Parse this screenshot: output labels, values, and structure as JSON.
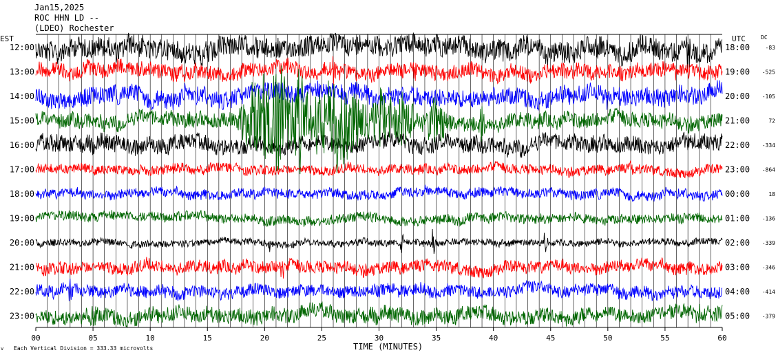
{
  "header": {
    "date": "Jan15,2025",
    "station": "ROC HHN LD --",
    "network": "(LDEO) Rochester"
  },
  "footer": {
    "scale_note": "Each Vertical Division = 333.33 microvolts",
    "corner_mark": "v"
  },
  "chart_data": {
    "type": "line",
    "title": "Jan15,2025 ROC HHN LD -- (LDEO) Rochester",
    "xlabel": "TIME (MINUTES)",
    "xlim": [
      0,
      60
    ],
    "x_ticks": [
      "00",
      "05",
      "10",
      "15",
      "20",
      "25",
      "30",
      "35",
      "40",
      "45",
      "50",
      "55",
      "60"
    ],
    "left_axis_label": "EST",
    "right_axis_label": "UTC",
    "dc_label": "DC",
    "grid": "vertical lines every minute",
    "colors": [
      "#000000",
      "#ff0000",
      "#0000ff",
      "#006600"
    ],
    "series": [
      {
        "est": "12:00",
        "utc": "18:00",
        "dc": "-83",
        "color": "#000000",
        "amplitude": 0.75,
        "spikes": [
          [
            2,
            1.2
          ],
          [
            15,
            1.1
          ],
          [
            57,
            1.6
          ]
        ]
      },
      {
        "est": "13:00",
        "utc": "19:00",
        "dc": "-525",
        "color": "#ff0000",
        "amplitude": 0.55,
        "spikes": [
          [
            26,
            1.4
          ],
          [
            33,
            1.0
          ]
        ]
      },
      {
        "est": "14:00",
        "utc": "20:00",
        "dc": "-105",
        "color": "#0000ff",
        "amplitude": 0.65,
        "spikes": [
          [
            27,
            1.0
          ],
          [
            50,
            0.9
          ]
        ]
      },
      {
        "est": "15:00",
        "utc": "21:00",
        "dc": "72",
        "color": "#006600",
        "amplitude": 0.55,
        "spikes": [
          [
            19,
            4.5
          ],
          [
            21,
            6.0
          ],
          [
            23,
            5.0
          ],
          [
            25,
            3.5
          ],
          [
            26.5,
            4.5
          ],
          [
            28,
            4.0
          ],
          [
            30,
            3.0
          ],
          [
            32,
            2.5
          ],
          [
            35,
            2.5
          ],
          [
            39,
            2.0
          ]
        ]
      },
      {
        "est": "16:00",
        "utc": "22:00",
        "dc": "-334",
        "color": "#000000",
        "amplitude": 0.6,
        "spikes": [
          [
            2,
            1.0
          ],
          [
            8,
            0.9
          ]
        ]
      },
      {
        "est": "17:00",
        "utc": "23:00",
        "dc": "-864",
        "color": "#ff0000",
        "amplitude": 0.35,
        "spikes": [
          [
            12,
            0.6
          ],
          [
            52,
            0.6
          ]
        ]
      },
      {
        "est": "18:00",
        "utc": "00:00",
        "dc": "18",
        "color": "#0000ff",
        "amplitude": 0.35,
        "spikes": []
      },
      {
        "est": "19:00",
        "utc": "01:00",
        "dc": "-136",
        "color": "#006600",
        "amplitude": 0.35,
        "spikes": []
      },
      {
        "est": "20:00",
        "utc": "02:00",
        "dc": "-339",
        "color": "#000000",
        "amplitude": 0.25,
        "spikes": [
          [
            20.5,
            1.0
          ],
          [
            32,
            0.8
          ],
          [
            34.7,
            1.5
          ],
          [
            44.5,
            0.9
          ]
        ]
      },
      {
        "est": "21:00",
        "utc": "03:00",
        "dc": "-346",
        "color": "#ff0000",
        "amplitude": 0.45,
        "spikes": [
          [
            21.5,
            1.2
          ]
        ]
      },
      {
        "est": "22:00",
        "utc": "04:00",
        "dc": "-414",
        "color": "#0000ff",
        "amplitude": 0.45,
        "spikes": [
          [
            3,
            0.9
          ]
        ]
      },
      {
        "est": "23:00",
        "utc": "05:00",
        "dc": "-379",
        "color": "#006600",
        "amplitude": 0.55,
        "spikes": [
          [
            5,
            1.2
          ],
          [
            58,
            1.0
          ]
        ]
      }
    ]
  }
}
